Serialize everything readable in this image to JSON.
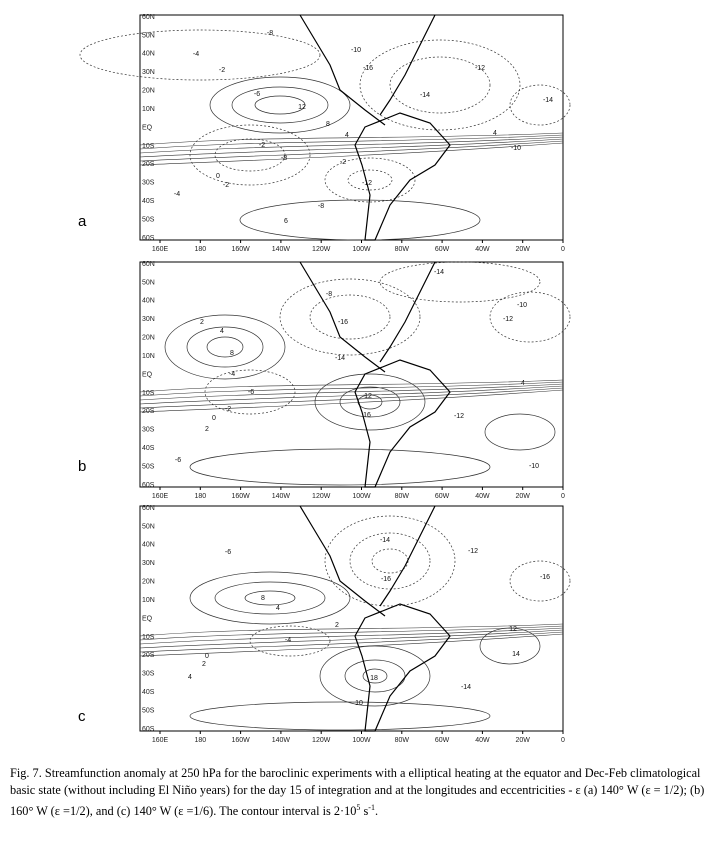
{
  "panels": [
    {
      "label": "a",
      "contour_labels": [
        "-8",
        "-4",
        "-10",
        "-12",
        "-14",
        "-16",
        "-2",
        "-6",
        "12",
        "8",
        "4",
        "-2",
        "-8",
        "-2",
        "0",
        "-2",
        "-12",
        "-8",
        "6",
        "-14",
        "-10",
        "4",
        "-4"
      ]
    },
    {
      "label": "b",
      "contour_labels": [
        "-14",
        "-8",
        "-10",
        "-16",
        "-12",
        "-14",
        "8",
        "4",
        "2",
        "-6",
        "-2",
        "0",
        "2",
        "-4",
        "12",
        "16",
        "-12",
        "-10",
        "-6",
        "4"
      ]
    },
    {
      "label": "c",
      "contour_labels": [
        "-6",
        "-12",
        "-14",
        "-16",
        "8",
        "4",
        "2",
        "-4",
        "0",
        "2",
        "4",
        "18",
        "10",
        "-14",
        "-16",
        "12",
        "14"
      ]
    }
  ],
  "lat_ticks": [
    "60N",
    "50N",
    "40N",
    "30N",
    "20N",
    "10N",
    "EQ",
    "10S",
    "20S",
    "30S",
    "40S",
    "50S",
    "60S"
  ],
  "lon_ticks": [
    "160E",
    "180",
    "160W",
    "140W",
    "120W",
    "100W",
    "80W",
    "60W",
    "40W",
    "20W",
    "0"
  ],
  "caption": [
    "Fig. 7. Streamfunction anomaly at 250 hPa for the baroclinic experiments with a elliptical heating  at the equator and Dec-Feb climatological basic state (without including El Niño years) for the day 15 of integration and at the longitudes and eccentricities - ε (a) 140° W (ε = 1/2); (b) 160° W (ε =1/2), and (c) 140° W (ε =1/6). The contour interval is 2·10",
    "5",
    " s",
    "-1",
    "."
  ]
}
